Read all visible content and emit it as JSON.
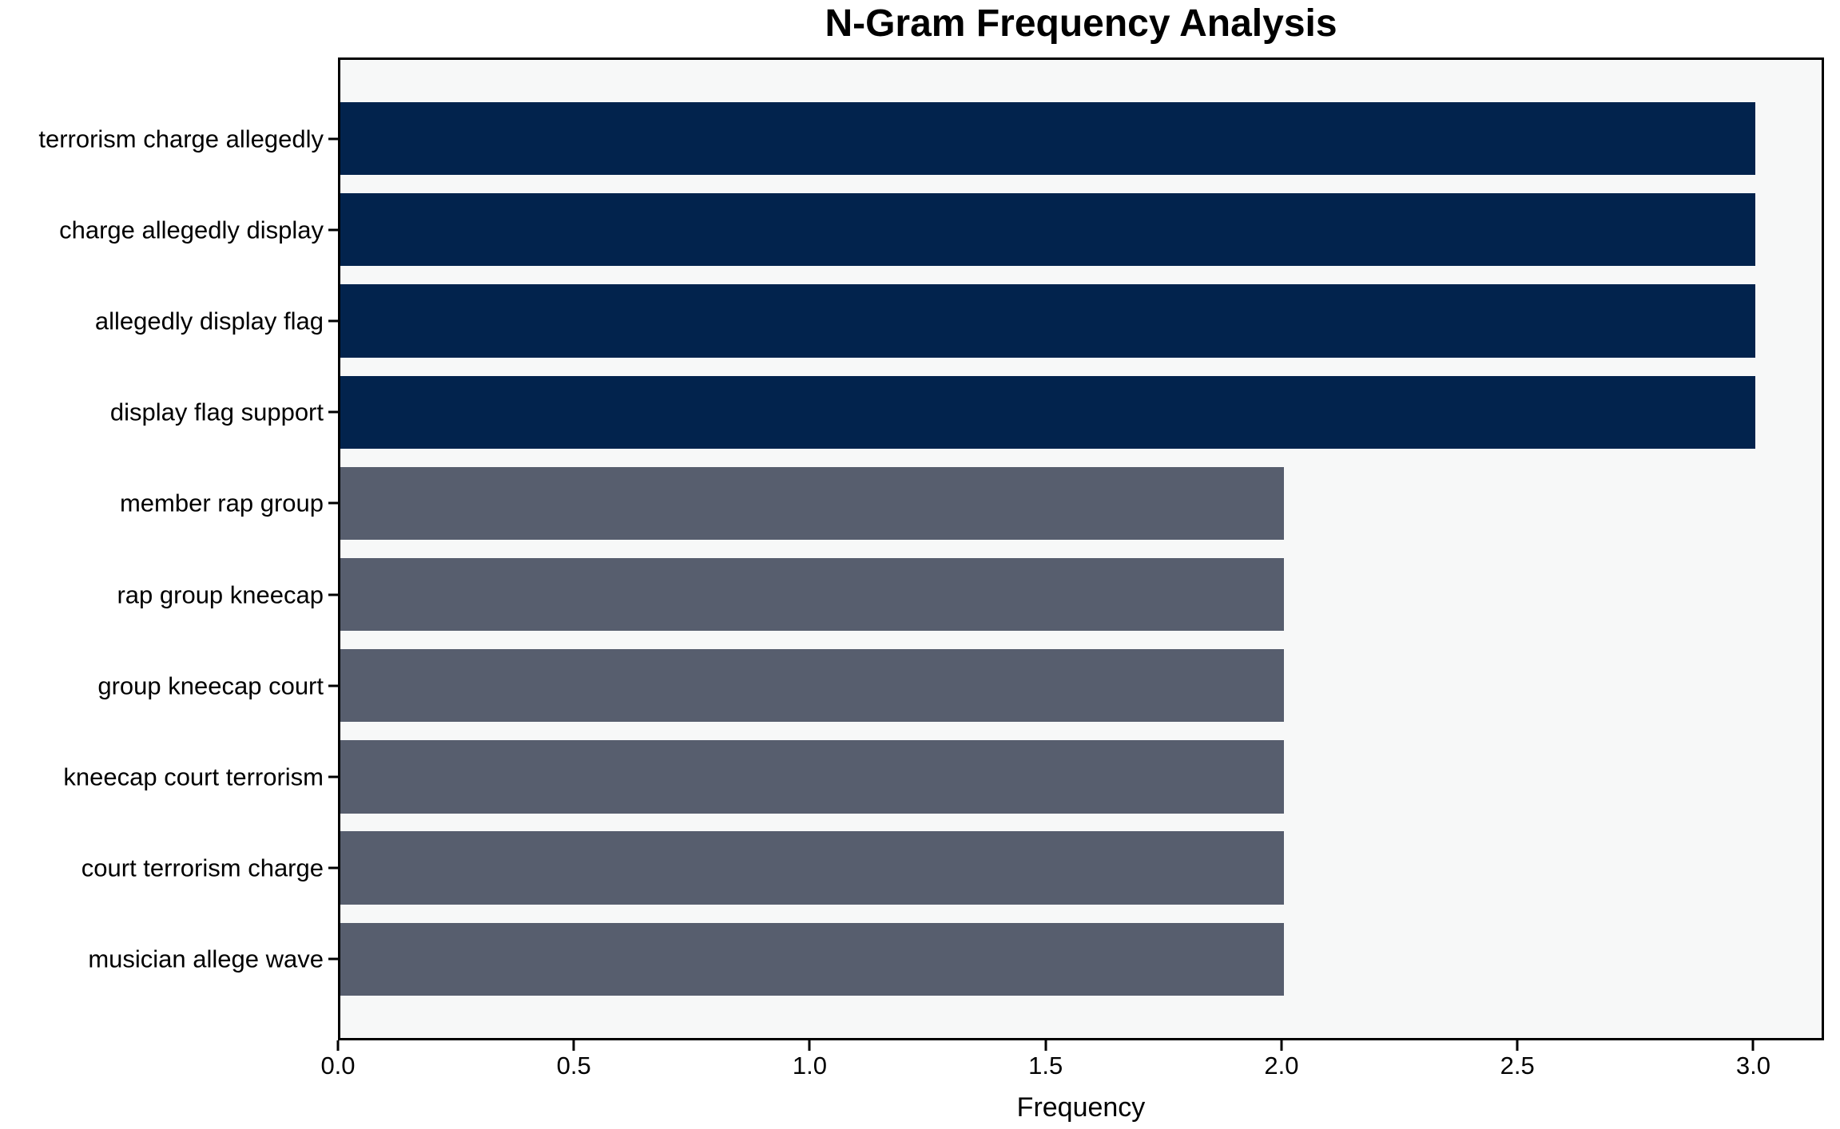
{
  "chart_data": {
    "type": "bar",
    "orientation": "horizontal",
    "title": "N-Gram Frequency Analysis",
    "xlabel": "Frequency",
    "ylabel": "",
    "categories": [
      "terrorism charge allegedly",
      "charge allegedly display",
      "allegedly display flag",
      "display flag support",
      "member rap group",
      "rap group kneecap",
      "group kneecap court",
      "kneecap court terrorism",
      "court terrorism charge",
      "musician allege wave"
    ],
    "values": [
      3,
      3,
      3,
      3,
      2,
      2,
      2,
      2,
      2,
      2
    ],
    "bar_colors": [
      "#02234d",
      "#02234d",
      "#02234d",
      "#02234d",
      "#575e6e",
      "#575e6e",
      "#575e6e",
      "#575e6e",
      "#575e6e",
      "#575e6e"
    ],
    "xlim": [
      0,
      3.15
    ],
    "xtick_values": [
      0,
      0.5,
      1,
      1.5,
      2,
      2.5,
      3
    ],
    "xtick_labels": [
      "0.0",
      "0.5",
      "1.0",
      "1.5",
      "2.0",
      "2.5",
      "3.0"
    ],
    "grid": false,
    "legend": "none",
    "plot_background": "#f7f8f8",
    "figure_background": "#ffffff",
    "spine_color": "#000000",
    "text_color": "#000000"
  }
}
